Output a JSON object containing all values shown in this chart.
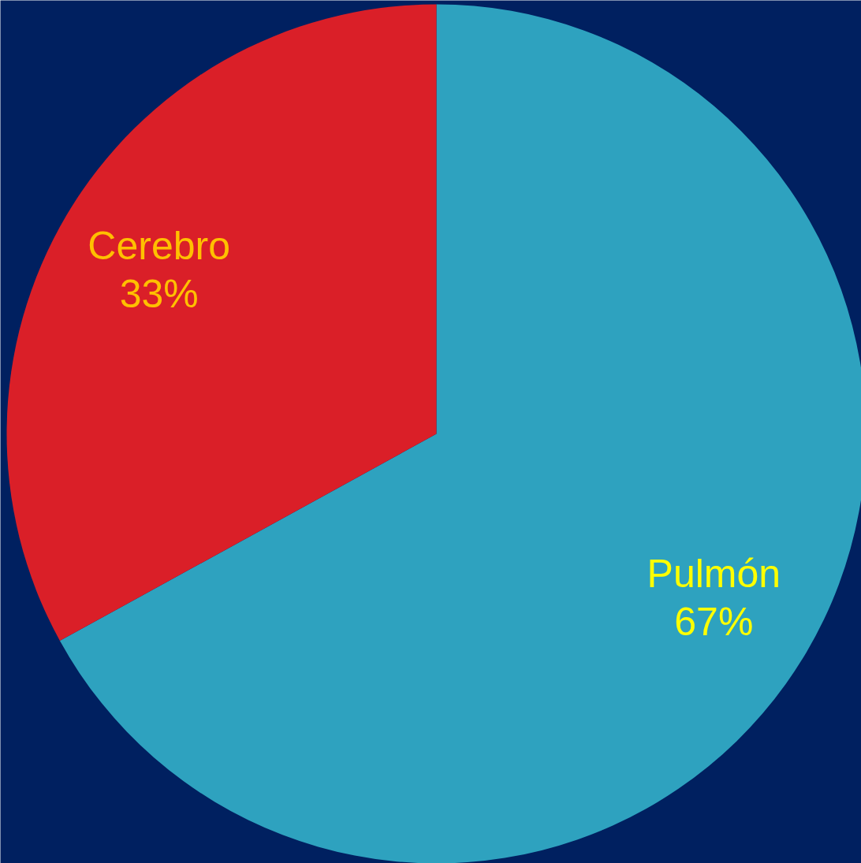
{
  "chart_data": {
    "type": "pie",
    "categories": [
      "Pulmón",
      "Cerebro"
    ],
    "values": [
      67,
      33
    ],
    "colors": [
      "#2ea2bf",
      "#da1f28"
    ],
    "value_labels": [
      "67%",
      "33%"
    ]
  }
}
